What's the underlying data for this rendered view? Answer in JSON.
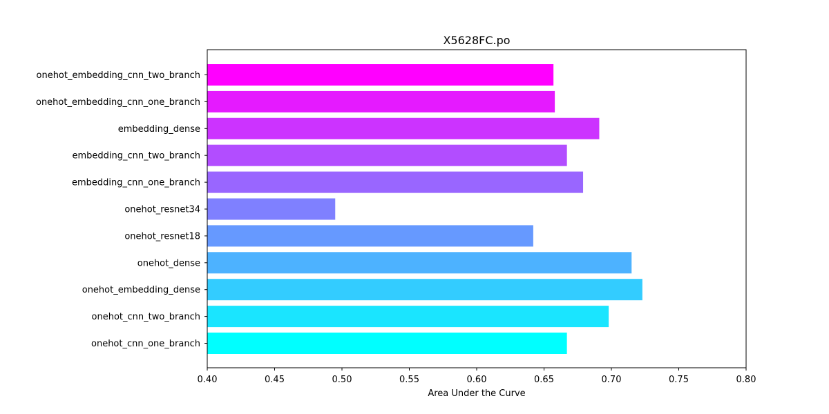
{
  "chart_data": {
    "type": "bar",
    "orientation": "horizontal",
    "title": "X5628FC.po",
    "xlabel": "Area Under the Curve",
    "ylabel": "",
    "xlim": [
      0.4,
      0.8
    ],
    "xticks": [
      "0.40",
      "0.45",
      "0.50",
      "0.55",
      "0.60",
      "0.65",
      "0.70",
      "0.75",
      "0.80"
    ],
    "grid": false,
    "legend": "none",
    "colormap": "cool",
    "categories": [
      "onehot_embedding_cnn_two_branch",
      "onehot_embedding_cnn_one_branch",
      "embedding_dense",
      "embedding_cnn_two_branch",
      "embedding_cnn_one_branch",
      "onehot_resnet34",
      "onehot_resnet18",
      "onehot_dense",
      "onehot_embedding_dense",
      "onehot_cnn_two_branch",
      "onehot_cnn_one_branch"
    ],
    "values": [
      0.657,
      0.658,
      0.691,
      0.667,
      0.679,
      0.495,
      0.642,
      0.715,
      0.723,
      0.698,
      0.667
    ],
    "colors": [
      "#ff00ff",
      "#e51aff",
      "#cc33ff",
      "#b24dff",
      "#9966ff",
      "#7f80ff",
      "#6699ff",
      "#4db2ff",
      "#33ccff",
      "#1ae5ff",
      "#00ffff"
    ]
  }
}
